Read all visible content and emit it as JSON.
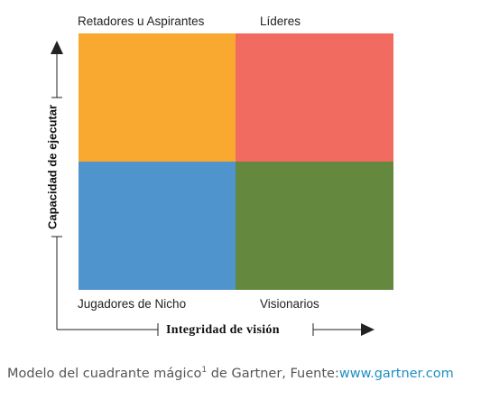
{
  "quadrants": {
    "top_left": {
      "label": "Retadores u Aspirantes",
      "color": "#f9a92f"
    },
    "top_right": {
      "label": "Líderes",
      "color": "#f16b61"
    },
    "bottom_left": {
      "label": "Jugadores de Nicho",
      "color": "#4f94cc"
    },
    "bottom_right": {
      "label": "Visionarios",
      "color": "#65883f"
    }
  },
  "axes": {
    "y_title": "Capacidad de ejecutar",
    "x_title": "Integridad de visión"
  },
  "caption": {
    "text": "Modelo del cuadrante mágico",
    "superscript": "1",
    "middle": " de Gartner, Fuente:",
    "link_text": "www.gartner.com",
    "link_color": "#1f8fc4"
  }
}
